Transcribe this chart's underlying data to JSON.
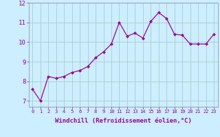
{
  "x": [
    0,
    1,
    2,
    3,
    4,
    5,
    6,
    7,
    8,
    9,
    10,
    11,
    12,
    13,
    14,
    15,
    16,
    17,
    18,
    19,
    20,
    21,
    22,
    23
  ],
  "y": [
    7.6,
    7.0,
    8.25,
    8.15,
    8.25,
    8.45,
    8.55,
    8.75,
    9.2,
    9.5,
    9.9,
    11.0,
    10.3,
    10.45,
    10.2,
    11.05,
    11.5,
    11.2,
    10.4,
    10.35,
    9.9,
    9.9,
    9.9,
    10.4
  ],
  "line_color": "#990099",
  "marker": "D",
  "marker_size": 2.0,
  "bg_color": "#cceeff",
  "grid_color": "#aacccc",
  "xlabel": "Windchill (Refroidissement éolien,°C)",
  "yticks": [
    7,
    8,
    9,
    10,
    11,
    12
  ],
  "xlim": [
    -0.5,
    23.5
  ],
  "ylim": [
    6.7,
    11.85
  ],
  "tick_color": "#990099",
  "label_color": "#990099",
  "font_family": "monospace",
  "xfontsize": 5.0,
  "yfontsize": 6.5,
  "xlabel_fontsize": 6.5,
  "linewidth": 0.9,
  "spine_color": "#8888aa"
}
